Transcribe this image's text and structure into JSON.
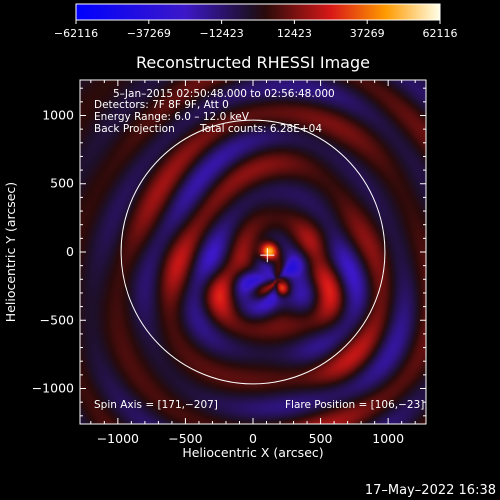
{
  "chart_data": {
    "type": "heatmap",
    "title": "Reconstructed RHESSI Image",
    "xlabel": "Heliocentric X (arcsec)",
    "ylabel": "Heliocentric Y (arcsec)",
    "xlim": [
      -1280,
      1280
    ],
    "ylim": [
      -1260,
      1260
    ],
    "x_ticks": [
      -1000,
      -500,
      0,
      500,
      1000
    ],
    "y_ticks": [
      -1000,
      -500,
      0,
      500,
      1000
    ],
    "x_tick_labels": [
      "−1000",
      "−500",
      "0",
      "500",
      "1000"
    ],
    "y_tick_labels": [
      "−1000",
      "−500",
      "0",
      "500",
      "1000"
    ],
    "colorbar": {
      "min": -62116,
      "max": 62116,
      "ticks": [
        -62116,
        -37269,
        -12423,
        12423,
        37269,
        62116
      ],
      "tick_labels": [
        "−62116",
        "−37269",
        "−12423",
        "12423",
        "37269",
        "62116"
      ],
      "stops": [
        {
          "pos": 0.0,
          "color": "#0000ff"
        },
        {
          "pos": 0.3,
          "color": "#3c18c8"
        },
        {
          "pos": 0.48,
          "color": "#1e0f28"
        },
        {
          "pos": 0.52,
          "color": "#2a0a0a"
        },
        {
          "pos": 0.7,
          "color": "#d81818"
        },
        {
          "pos": 0.85,
          "color": "#ff9a00"
        },
        {
          "pos": 1.0,
          "color": "#ffffe8"
        }
      ]
    },
    "annotations": {
      "time_range": "5–Jan–2015 02:50:48.000 to 02:56:48.000",
      "detectors": "Detectors: 7F 8F 9F, Att 0",
      "energy_range": "Energy Range: 6.0 – 12.0 keV",
      "method": "Back Projection",
      "total_counts": "Total counts: 6.28E+04",
      "spin_axis": "Spin Axis = [171,−207]",
      "flare_position": "Flare Position = [106,−23]"
    },
    "solar_disk_radius_arcsec": 976,
    "flare_position": [
      106,
      -23
    ],
    "spin_axis": [
      171,
      -207
    ],
    "bright_sources": [
      {
        "x": 120,
        "y": 5,
        "value": 62116
      },
      {
        "x": 215,
        "y": -265,
        "value": 40000
      }
    ],
    "grid": false
  },
  "footer": {
    "timestamp": "17–May–2022 16:38"
  },
  "colors": {
    "background": "#000000",
    "foreground": "#ffffff"
  }
}
